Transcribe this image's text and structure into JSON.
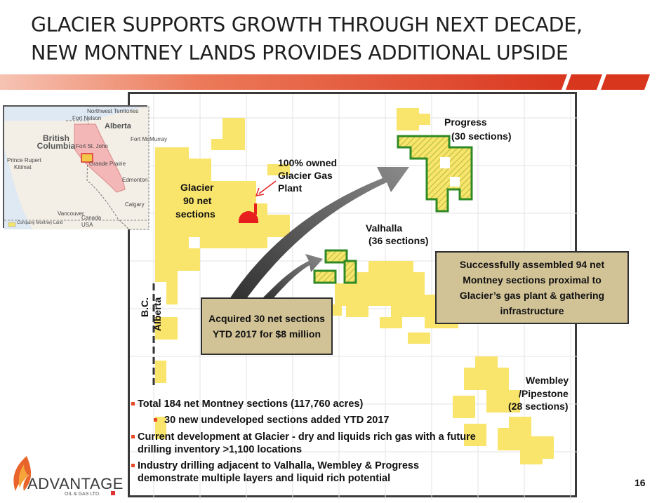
{
  "title": {
    "line1": "GLACIER SUPPORTS GROWTH THROUGH NEXT DECADE,",
    "line2": "NEW MONTNEY LANDS PROVIDES ADDITIONAL UPSIDE"
  },
  "colors": {
    "accent": "#e84a27",
    "land": "#f9e46c",
    "new_land": "#2f8a25",
    "callout": "#d2c397",
    "arrow": "#555555"
  },
  "map": {
    "labels": {
      "progress": "Progress",
      "progress_count": "(30 sections)",
      "gas_plant_1": "100% owned",
      "gas_plant_2": "Glacier Gas",
      "gas_plant_3": "Plant",
      "glacier_1": "Glacier",
      "glacier_2": "90 net",
      "glacier_3": "sections",
      "valhalla": "Valhalla",
      "valhalla_count": "(36 sections)",
      "wembley_1": "Wembley",
      "wembley_2": "/Pipestone",
      "wembley_3": "(28 sections)",
      "bc": "B.C.",
      "alberta": "Alberta"
    },
    "callouts": {
      "acquired": "Acquired 30 net sections YTD 2017 for $8 million",
      "assembled": "Successfully assembled 94 net Montney sections proximal to Glacier’s gas plant & gathering infrastructure"
    }
  },
  "inset": {
    "british_columbia": "British Columbia",
    "alberta": "Alberta",
    "northwest": "Northwest Territories",
    "fort_nelson": "Fort Nelson",
    "fort_st_john": "Fort St. John",
    "grande_prairie": "Grande Prairie",
    "fort_mcmurray": "Fort McMurray",
    "edmonton": "Edmonton",
    "calgary": "Calgary",
    "vancouver": "Vancouver",
    "prince_rupert": "Prince Rupert",
    "kitimat": "Kitimat",
    "canada": "Canada",
    "usa": "USA",
    "legend": "Company Montney Land"
  },
  "bullets": {
    "b1": "Total 184 net Montney sections (117,760 acres)",
    "b1_sub": "30 new undeveloped sections added YTD 2017",
    "b2": "Current development at Glacier - dry and liquids rich gas with a future drilling inventory >1,100 locations",
    "b3": "Industry drilling adjacent to Valhalla, Wembley & Progress demonstrate multiple layers and liquid rich potential"
  },
  "logo": {
    "name": "ADVANTAGE",
    "sub": "OIL & GAS LTD."
  },
  "page_number": "16"
}
